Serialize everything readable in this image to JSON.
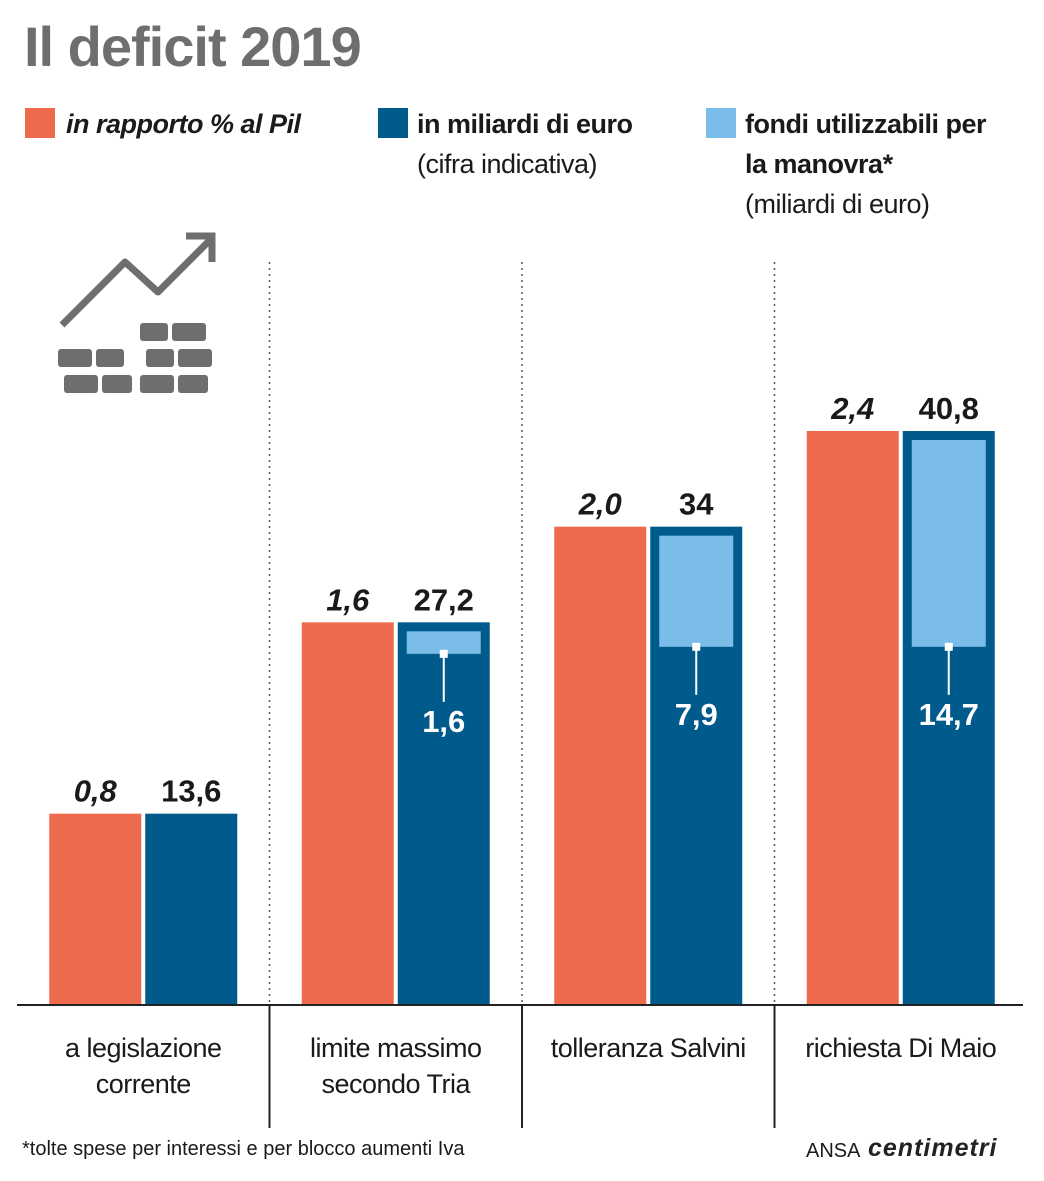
{
  "chart_data": {
    "type": "bar",
    "title": "Il deficit 2019",
    "categories": [
      "a legislazione corrente",
      "limite massimo secondo Tria",
      "tolleranza Salvini",
      "richiesta Di Maio"
    ],
    "series": [
      {
        "name": "in rapporto % al Pil",
        "color": "#ee6a4c",
        "values": [
          0.8,
          1.6,
          2.0,
          2.4
        ],
        "value_labels": [
          "0,8",
          "1,6",
          "2,0",
          "2,4"
        ]
      },
      {
        "name": "in miliardi di euro",
        "legend_note": "(cifra indicativa)",
        "color": "#005a8c",
        "axis": "y2",
        "values": [
          13.6,
          27.2,
          34,
          40.8
        ],
        "value_labels": [
          "13,6",
          "27,2",
          "34",
          "40,8"
        ]
      },
      {
        "name": "fondi utilizzabili per la manovra*",
        "legend_note": "(miliardi di euro)",
        "color": "#7abde8",
        "axis": "y2",
        "values": [
          null,
          1.6,
          7.9,
          14.7
        ],
        "value_labels": [
          null,
          "1,6",
          "7,9",
          "14,7"
        ]
      }
    ],
    "ylim": [
      0,
      2.4
    ],
    "y2lim": [
      0,
      40.8
    ],
    "footnote": "*tolte spese per interessi e per blocco aumenti Iva",
    "source": "ANSA",
    "logo": "centimetri"
  }
}
